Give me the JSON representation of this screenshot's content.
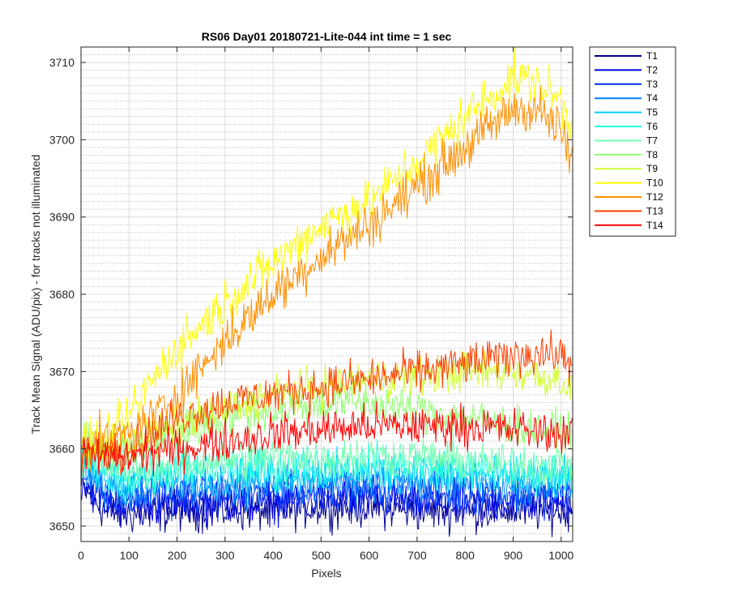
{
  "chart_data": {
    "type": "line",
    "title": "RS06 Day01 20180721-Lite-044 int time = 1 sec",
    "xlabel": "Pixels",
    "ylabel": "Track Mean Signal (ADU/pix) - for tracks not illuminated",
    "xlim": [
      0,
      1024
    ],
    "ylim": [
      3648,
      3712
    ],
    "xticks": [
      0,
      100,
      200,
      300,
      400,
      500,
      600,
      700,
      800,
      900,
      1000
    ],
    "yticks": [
      3650,
      3660,
      3670,
      3680,
      3690,
      3700,
      3710
    ],
    "grid": "major solid, minor dotted",
    "legend_position": "outside-right",
    "series": [
      {
        "name": "T1",
        "color": "#00008F",
        "x": [
          0,
          50,
          100,
          200,
          300,
          400,
          500,
          600,
          700,
          800,
          900,
          1000,
          1024
        ],
        "y": [
          3655,
          3652,
          3651.5,
          3652,
          3652,
          3652,
          3652.5,
          3652.5,
          3652,
          3652,
          3652,
          3652,
          3652
        ]
      },
      {
        "name": "T2",
        "color": "#0000DF",
        "x": [
          0,
          50,
          100,
          200,
          300,
          400,
          500,
          600,
          700,
          800,
          900,
          1000,
          1024
        ],
        "y": [
          3656,
          3653,
          3652.5,
          3653,
          3653,
          3653,
          3653.5,
          3653.5,
          3653,
          3653,
          3653,
          3653,
          3653
        ]
      },
      {
        "name": "T3",
        "color": "#0030FF",
        "x": [
          0,
          50,
          100,
          200,
          300,
          400,
          500,
          600,
          700,
          800,
          900,
          1000,
          1024
        ],
        "y": [
          3657,
          3654,
          3653.5,
          3654,
          3654,
          3654,
          3654.5,
          3654.5,
          3654,
          3654,
          3654,
          3654,
          3654
        ]
      },
      {
        "name": "T4",
        "color": "#0080FF",
        "x": [
          0,
          50,
          100,
          200,
          300,
          400,
          500,
          600,
          700,
          800,
          900,
          1000,
          1024
        ],
        "y": [
          3657.5,
          3655,
          3654.5,
          3655,
          3655,
          3655.5,
          3655.5,
          3655.5,
          3655.5,
          3655,
          3655,
          3655,
          3655
        ]
      },
      {
        "name": "T5",
        "color": "#00CFFF",
        "x": [
          0,
          50,
          100,
          200,
          300,
          400,
          500,
          600,
          700,
          800,
          900,
          1000,
          1024
        ],
        "y": [
          3658,
          3656,
          3655.5,
          3656,
          3656.5,
          3656.5,
          3657,
          3657,
          3657,
          3656.5,
          3656,
          3656,
          3656
        ]
      },
      {
        "name": "T6",
        "color": "#20FFDF",
        "x": [
          0,
          50,
          100,
          200,
          300,
          400,
          500,
          600,
          700,
          800,
          900,
          1000,
          1024
        ],
        "y": [
          3658.5,
          3657,
          3656.5,
          3657,
          3657.5,
          3657.5,
          3658,
          3658,
          3658,
          3657.5,
          3657,
          3657,
          3657
        ]
      },
      {
        "name": "T7",
        "color": "#70FFAF",
        "x": [
          0,
          50,
          100,
          200,
          300,
          400,
          500,
          600,
          700,
          800,
          900,
          1000,
          1024
        ],
        "y": [
          3659,
          3658,
          3657.5,
          3658,
          3658.5,
          3659,
          3659,
          3659,
          3659,
          3658.5,
          3658,
          3658,
          3658
        ]
      },
      {
        "name": "T8",
        "color": "#8FFF70",
        "x": [
          0,
          50,
          100,
          200,
          300,
          400,
          500,
          600,
          700,
          800,
          900,
          1000,
          1024
        ],
        "y": [
          3660,
          3660,
          3660,
          3662,
          3664,
          3665,
          3666,
          3666,
          3665,
          3664,
          3663,
          3662,
          3662
        ]
      },
      {
        "name": "T9",
        "color": "#CFFF30",
        "x": [
          0,
          50,
          100,
          200,
          300,
          400,
          500,
          600,
          700,
          800,
          900,
          1000,
          1024
        ],
        "y": [
          3660,
          3660,
          3661,
          3663,
          3665,
          3667,
          3668,
          3669,
          3669.5,
          3670,
          3670,
          3669,
          3668
        ]
      },
      {
        "name": "T10",
        "color": "#FFFF00",
        "x": [
          0,
          50,
          100,
          150,
          200,
          300,
          400,
          500,
          600,
          700,
          800,
          900,
          950,
          1000,
          1024
        ],
        "y": [
          3660,
          3661,
          3664,
          3669,
          3673,
          3679,
          3684,
          3689,
          3692,
          3697,
          3703,
          3708,
          3707.5,
          3705,
          3701
        ]
      },
      {
        "name": "T12",
        "color": "#FF8F00",
        "x": [
          0,
          50,
          100,
          150,
          200,
          300,
          400,
          500,
          600,
          700,
          800,
          900,
          950,
          1000,
          1024
        ],
        "y": [
          3660,
          3661,
          3662,
          3664,
          3667,
          3674,
          3680,
          3685,
          3689,
          3694,
          3699,
          3704,
          3704,
          3701,
          3697
        ]
      },
      {
        "name": "T13",
        "color": "#FF3F00",
        "x": [
          0,
          50,
          100,
          200,
          300,
          400,
          500,
          600,
          700,
          800,
          900,
          950,
          1000,
          1024
        ],
        "y": [
          3660,
          3660,
          3660,
          3664,
          3666,
          3667,
          3668,
          3669,
          3670,
          3671,
          3672,
          3672.5,
          3672,
          3671
        ]
      },
      {
        "name": "T14",
        "color": "#FF0000",
        "x": [
          0,
          50,
          100,
          200,
          300,
          400,
          500,
          600,
          700,
          800,
          900,
          1000,
          1024
        ],
        "y": [
          3659,
          3659,
          3659,
          3660,
          3661,
          3662,
          3662.5,
          3663,
          3663,
          3663,
          3662.5,
          3662,
          3662
        ]
      }
    ]
  }
}
